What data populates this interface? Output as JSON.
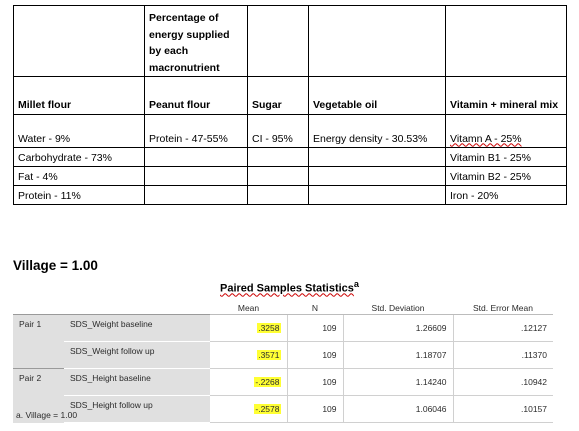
{
  "nutrient_table": {
    "header_top": "Percentage of energy supplied by each macronutrient",
    "columns": [
      "Millet flour",
      "Peanut flour",
      "Sugar",
      "Vegetable oil",
      "Vitamin + mineral mix"
    ],
    "rows": [
      [
        "Water - 9%",
        "Protein - 47-55%",
        "CI - 95%",
        "Energy density - 30.53%",
        "Vitamn A - 25%"
      ],
      [
        "Carbohydrate - 73%",
        "",
        "",
        "",
        "Vitamin B1 - 25%"
      ],
      [
        "Fat - 4%",
        "",
        "",
        "",
        "Vitamin B2 - 25%"
      ],
      [
        "Protein - 11%",
        "",
        "",
        "",
        "Iron - 20%"
      ]
    ]
  },
  "village_title": "Village = 1.00",
  "stats": {
    "title": "Paired Samples Statistics",
    "title_marker": "a",
    "headers": [
      "Mean",
      "N",
      "Std. Deviation",
      "Std. Error Mean"
    ],
    "pairs": [
      {
        "label": "Pair 1",
        "rows": [
          {
            "variable": "SDS_Weight baseline",
            "mean": ".3258",
            "n": "109",
            "sd": "1.26609",
            "se": ".12127"
          },
          {
            "variable": "SDS_Weight follow up",
            "mean": ".3571",
            "n": "109",
            "sd": "1.18707",
            "se": ".11370"
          }
        ]
      },
      {
        "label": "Pair 2",
        "rows": [
          {
            "variable": "SDS_Height baseline",
            "mean": "-.2268",
            "n": "109",
            "sd": "1.14240",
            "se": ".10942"
          },
          {
            "variable": "SDS_Height follow up",
            "mean": "-.2578",
            "n": "109",
            "sd": "1.06046",
            "se": ".10157"
          }
        ]
      }
    ],
    "footnote": "a. Village = 1.00",
    "highlight_color": "#ffff33"
  }
}
